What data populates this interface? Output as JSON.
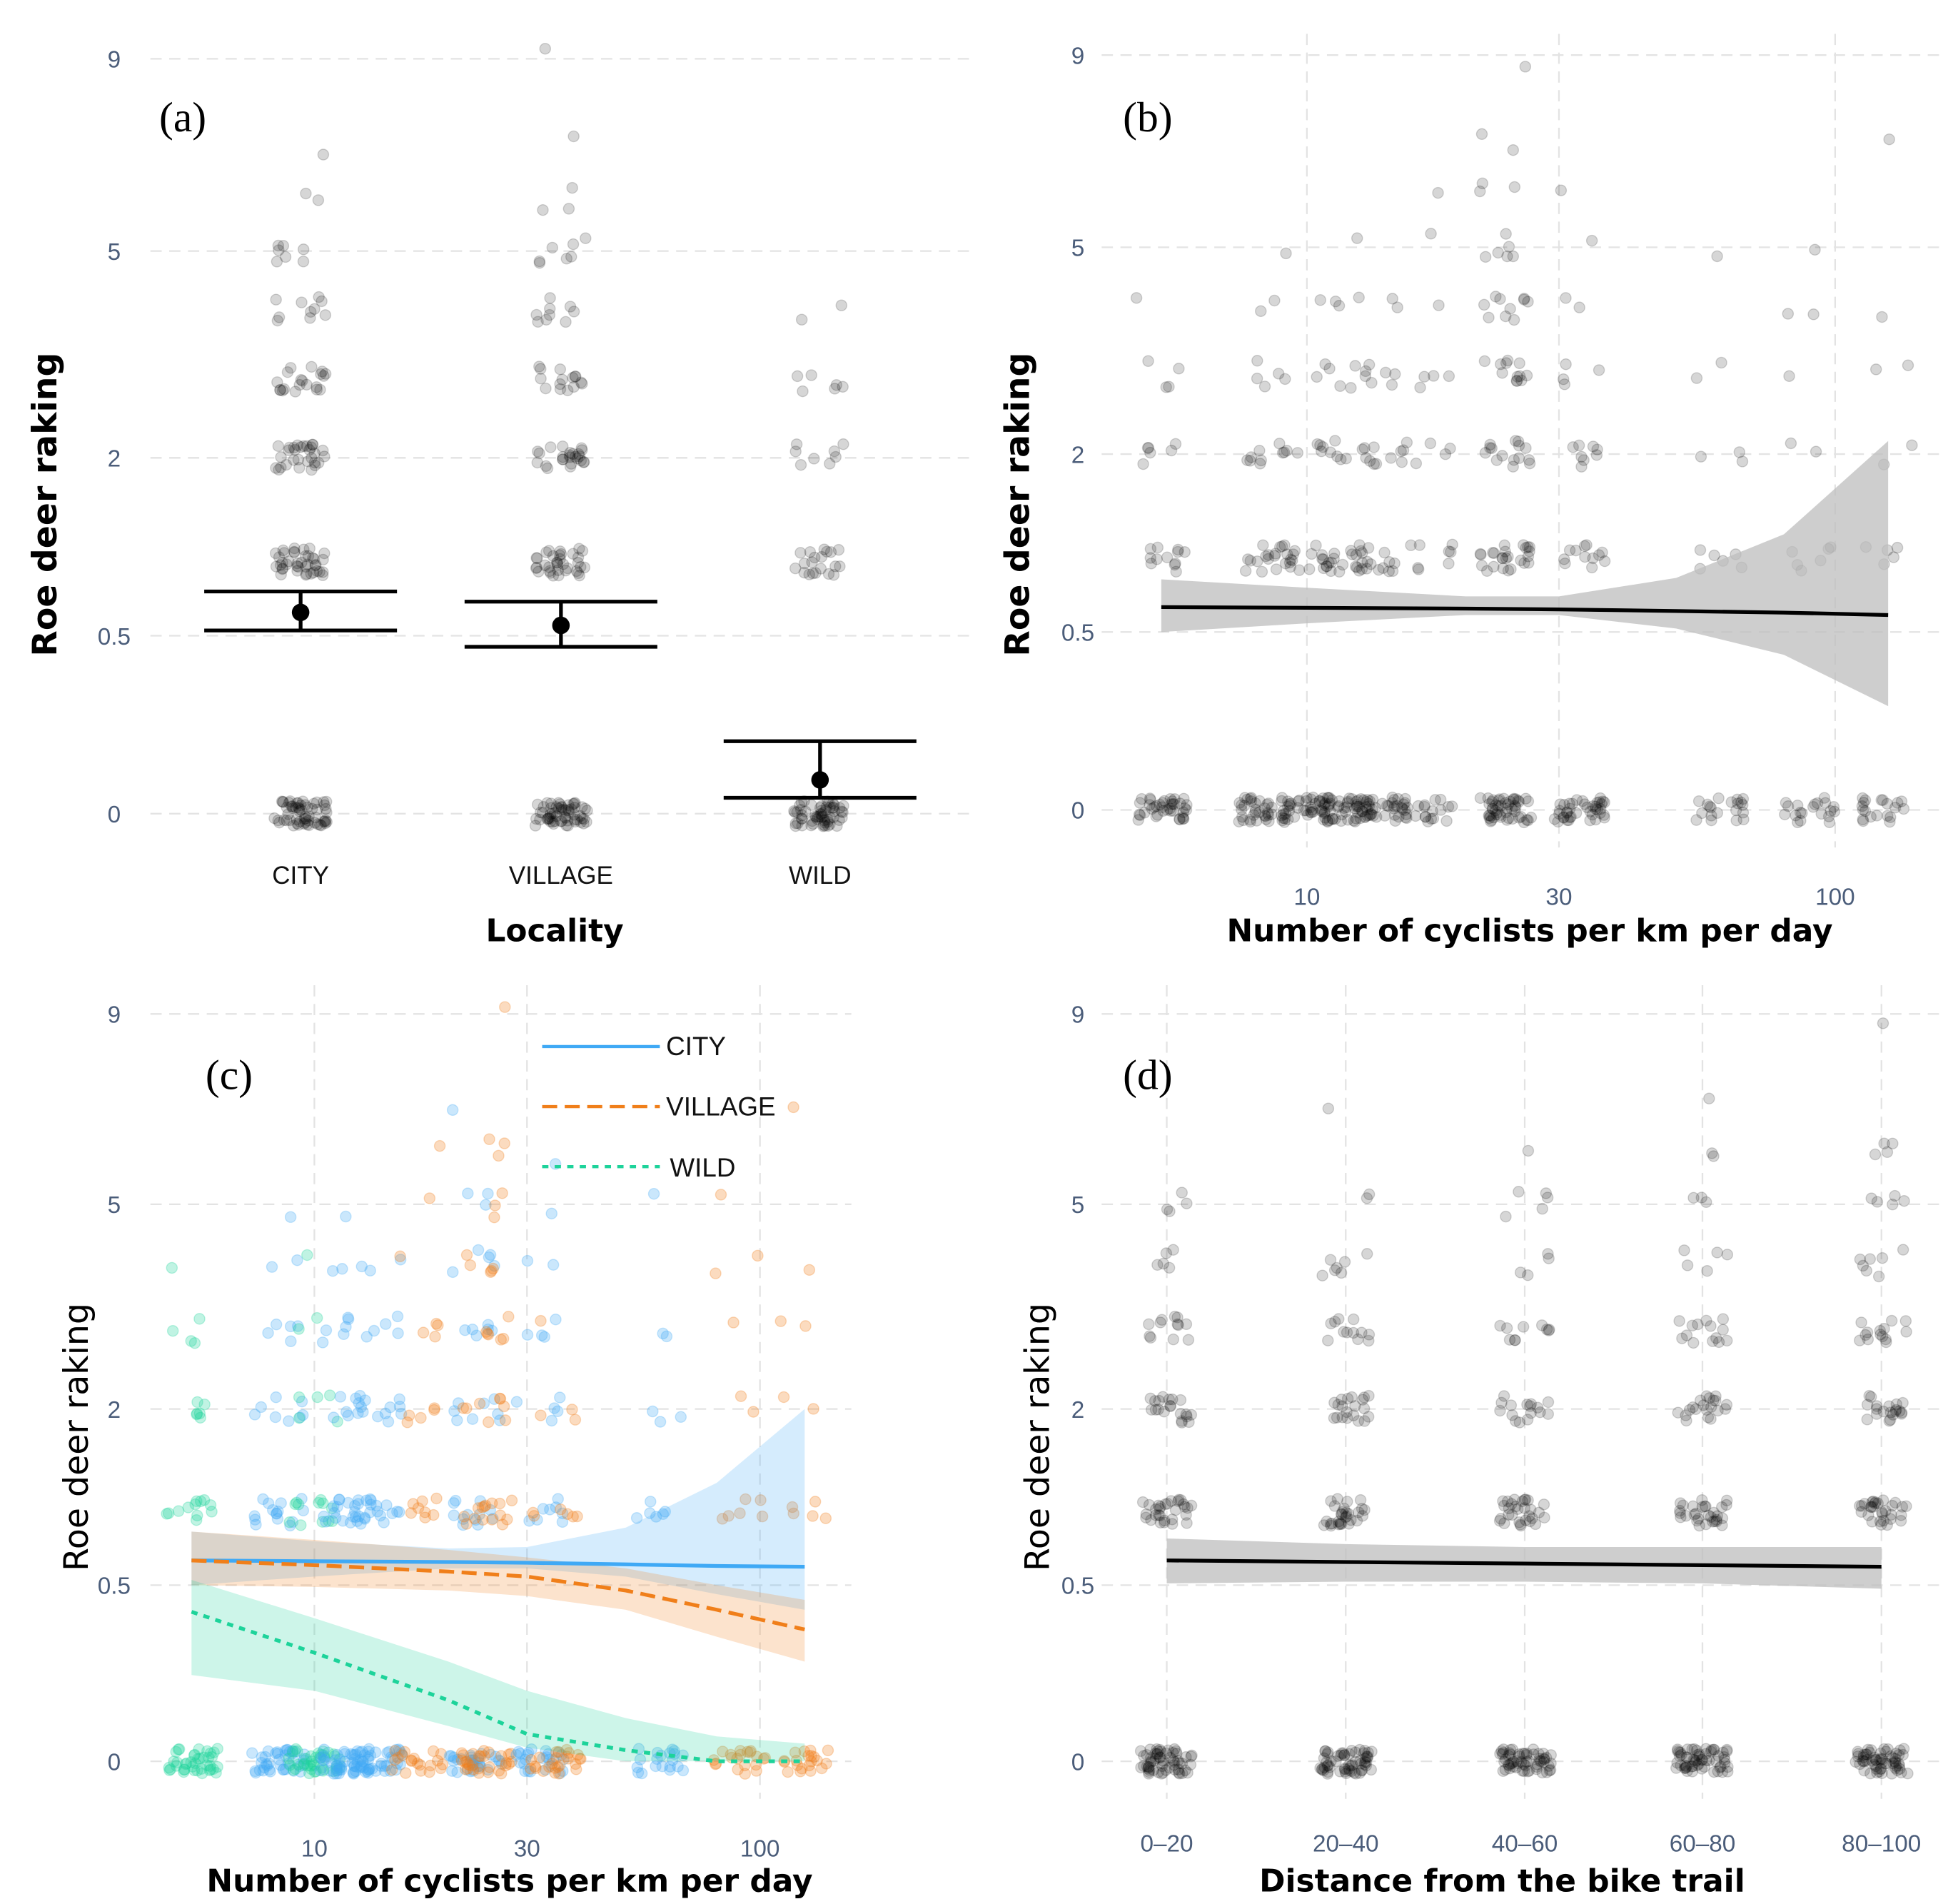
{
  "colors": {
    "city": "#3fa9f5",
    "village": "#f07f1a",
    "wild": "#1dd39a",
    "points": "#000000",
    "ribbon": "#bdbdbd"
  },
  "chart_data": [
    {
      "id": "a",
      "type": "scatter",
      "panel_label": "(a)",
      "xlabel": "Locality",
      "ylabel": "Roe deer raking",
      "y_scale": "sqrt",
      "yticks": [
        "0",
        "0.5",
        "2",
        "5",
        "9"
      ],
      "ytick_values": [
        0,
        0.5,
        2,
        5,
        9
      ],
      "categories": [
        "CITY",
        "VILLAGE",
        "WILD"
      ],
      "levels": [
        0,
        1,
        2,
        3,
        4,
        5,
        6,
        7,
        9
      ],
      "clusters": [
        {
          "x": "CITY",
          "counts": [
            60,
            40,
            30,
            20,
            10,
            7,
            2,
            1,
            0
          ]
        },
        {
          "x": "VILLAGE",
          "counts": [
            60,
            35,
            25,
            15,
            9,
            7,
            3,
            1,
            1
          ]
        },
        {
          "x": "WILD",
          "counts": [
            60,
            20,
            8,
            6,
            2,
            0,
            0,
            0,
            0
          ]
        }
      ],
      "means": [
        {
          "x": "CITY",
          "mean": 0.64,
          "lower": 0.53,
          "upper": 0.78
        },
        {
          "x": "VILLAGE",
          "mean": 0.56,
          "lower": 0.44,
          "upper": 0.71
        },
        {
          "x": "WILD",
          "mean": 0.018,
          "lower": 0.004,
          "upper": 0.083
        }
      ],
      "grid": "horizontal"
    },
    {
      "id": "b",
      "type": "scatter",
      "panel_label": "(b)",
      "xlabel": "Number of cyclists per km per day",
      "ylabel": "Roe deer raking",
      "x_scale": "log10",
      "xticks": [
        "10",
        "30",
        "100"
      ],
      "xtick_values": [
        10,
        30,
        100
      ],
      "y_scale": "sqrt",
      "yticks": [
        "0",
        "0.5",
        "2",
        "5",
        "9"
      ],
      "ytick_values": [
        0,
        0.5,
        2,
        5,
        9
      ],
      "levels": [
        0,
        1,
        2,
        3,
        4,
        5,
        6,
        7,
        9
      ],
      "clusters": [
        {
          "x": 5.3,
          "counts": [
            40,
            12,
            6,
            4,
            1,
            0,
            0,
            0,
            0
          ]
        },
        {
          "x": 8.3,
          "counts": [
            40,
            15,
            8,
            5,
            2,
            1,
            0,
            0,
            0
          ]
        },
        {
          "x": 10,
          "counts": [
            40,
            12,
            5,
            2,
            1,
            0,
            0,
            0,
            0
          ]
        },
        {
          "x": 11.8,
          "counts": [
            40,
            20,
            10,
            6,
            3,
            1,
            0,
            0,
            0
          ]
        },
        {
          "x": 13.8,
          "counts": [
            40,
            15,
            8,
            5,
            2,
            0,
            0,
            0,
            0
          ]
        },
        {
          "x": 17,
          "counts": [
            20,
            8,
            5,
            4,
            1,
            1,
            1,
            0,
            0
          ]
        },
        {
          "x": 23.7,
          "counts": [
            50,
            25,
            15,
            12,
            10,
            6,
            3,
            2,
            1
          ]
        },
        {
          "x": 33,
          "counts": [
            40,
            12,
            8,
            4,
            2,
            1,
            1,
            0,
            0
          ]
        },
        {
          "x": 60,
          "counts": [
            20,
            6,
            3,
            2,
            0,
            1,
            0,
            0,
            0
          ]
        },
        {
          "x": 90,
          "counts": [
            20,
            6,
            2,
            1,
            2,
            1,
            0,
            0,
            0
          ]
        },
        {
          "x": 126,
          "counts": [
            20,
            5,
            2,
            2,
            1,
            0,
            0,
            1,
            0
          ]
        }
      ],
      "fit": {
        "x": [
          5.3,
          10,
          20,
          30,
          50,
          80,
          126
        ],
        "y": [
          0.65,
          0.645,
          0.64,
          0.635,
          0.625,
          0.615,
          0.6
        ],
        "lower": [
          0.5,
          0.55,
          0.6,
          0.6,
          0.52,
          0.38,
          0.17
        ],
        "upper": [
          0.84,
          0.78,
          0.72,
          0.72,
          0.85,
          1.2,
          2.15
        ]
      },
      "grid": "both"
    },
    {
      "id": "c",
      "type": "scatter",
      "panel_label": "(c)",
      "xlabel": "Number of cyclists per km per day",
      "ylabel": "Roe deer raking",
      "x_scale": "log10",
      "xticks": [
        "10",
        "30",
        "100"
      ],
      "xtick_values": [
        10,
        30,
        100
      ],
      "y_scale": "sqrt",
      "yticks": [
        "0",
        "0.5",
        "2",
        "5",
        "9"
      ],
      "ytick_values": [
        0,
        0.5,
        2,
        5,
        9
      ],
      "legend": {
        "position": "top-center",
        "entries": [
          {
            "key": "city",
            "label": "CITY",
            "style": "solid"
          },
          {
            "key": "village",
            "label": "VILLAGE",
            "style": "dashed"
          },
          {
            "key": "wild",
            "label": "WILD",
            "style": "dotted"
          }
        ]
      },
      "levels": [
        0,
        1,
        2,
        3,
        4,
        5,
        6,
        7,
        9
      ],
      "clusters": [
        {
          "x": 5.3,
          "group": "wild",
          "counts": [
            40,
            12,
            6,
            4,
            1,
            0,
            0,
            0,
            0
          ]
        },
        {
          "x": 8.3,
          "group": "city",
          "counts": [
            40,
            15,
            8,
            5,
            2,
            1,
            0,
            0,
            0
          ]
        },
        {
          "x": 10,
          "group": "wild",
          "counts": [
            40,
            12,
            5,
            2,
            1,
            0,
            0,
            0,
            0
          ]
        },
        {
          "x": 11.8,
          "group": "city",
          "counts": [
            40,
            20,
            10,
            6,
            3,
            1,
            0,
            0,
            0
          ]
        },
        {
          "x": 13.8,
          "group": "city",
          "counts": [
            40,
            15,
            8,
            5,
            2,
            0,
            0,
            0,
            0
          ]
        },
        {
          "x": 17,
          "group": "village",
          "counts": [
            20,
            8,
            5,
            4,
            1,
            1,
            1,
            0,
            0
          ]
        },
        {
          "x": 23,
          "group": "city",
          "counts": [
            30,
            12,
            8,
            6,
            5,
            3,
            0,
            1,
            0
          ]
        },
        {
          "x": 24.5,
          "group": "village",
          "counts": [
            30,
            15,
            8,
            6,
            5,
            3,
            3,
            0,
            1
          ]
        },
        {
          "x": 32,
          "group": "city",
          "counts": [
            25,
            8,
            5,
            4,
            2,
            1,
            1,
            0,
            0
          ]
        },
        {
          "x": 35,
          "group": "village",
          "counts": [
            25,
            6,
            3,
            1,
            0,
            0,
            0,
            0,
            0
          ]
        },
        {
          "x": 60,
          "group": "city",
          "counts": [
            20,
            6,
            3,
            2,
            0,
            1,
            0,
            0,
            0
          ]
        },
        {
          "x": 90,
          "group": "village",
          "counts": [
            20,
            6,
            2,
            1,
            2,
            1,
            0,
            0,
            0
          ]
        },
        {
          "x": 126,
          "group": "village",
          "counts": [
            20,
            5,
            2,
            2,
            1,
            0,
            0,
            1,
            0
          ]
        }
      ],
      "fits": [
        {
          "key": "city",
          "x": [
            5.3,
            10,
            20,
            30,
            50,
            80,
            126
          ],
          "y": [
            0.65,
            0.645,
            0.64,
            0.635,
            0.625,
            0.615,
            0.61
          ],
          "lower": [
            0.5,
            0.55,
            0.6,
            0.6,
            0.55,
            0.45,
            0.37
          ],
          "upper": [
            0.85,
            0.78,
            0.73,
            0.74,
            0.88,
            1.25,
            2.0
          ]
        },
        {
          "key": "village",
          "x": [
            5.3,
            10,
            20,
            30,
            50,
            80,
            126
          ],
          "y": [
            0.65,
            0.62,
            0.58,
            0.55,
            0.47,
            0.37,
            0.28
          ],
          "lower": [
            0.5,
            0.49,
            0.47,
            0.44,
            0.37,
            0.25,
            0.16
          ],
          "upper": [
            0.85,
            0.79,
            0.72,
            0.67,
            0.6,
            0.5,
            0.42
          ]
        },
        {
          "key": "wild",
          "x": [
            5.3,
            10,
            20,
            30,
            50,
            80,
            126
          ],
          "y": [
            0.36,
            0.19,
            0.06,
            0.012,
            0.002,
            0,
            0
          ],
          "lower": [
            0.12,
            0.08,
            0.02,
            0.003,
            0,
            0,
            0
          ],
          "upper": [
            0.53,
            0.33,
            0.16,
            0.08,
            0.03,
            0.01,
            0.005
          ]
        }
      ],
      "grid": "both"
    },
    {
      "id": "d",
      "type": "scatter",
      "panel_label": "(d)",
      "xlabel": "Distance from the bike trail",
      "ylabel": "Roe deer raking",
      "categories": [
        "0–20",
        "20–40",
        "40–60",
        "60–80",
        "80–100"
      ],
      "y_scale": "sqrt",
      "yticks": [
        "0",
        "0.5",
        "2",
        "5",
        "9"
      ],
      "ytick_values": [
        0,
        0.5,
        2,
        5,
        9
      ],
      "levels": [
        0,
        1,
        2,
        3,
        4,
        5,
        6,
        7,
        9
      ],
      "clusters": [
        {
          "x": "0–20",
          "counts": [
            60,
            30,
            20,
            12,
            5,
            4,
            0,
            0,
            0
          ]
        },
        {
          "x": "20–40",
          "counts": [
            60,
            30,
            20,
            12,
            7,
            2,
            0,
            1,
            0
          ]
        },
        {
          "x": "40–60",
          "counts": [
            60,
            30,
            16,
            10,
            4,
            5,
            1,
            0,
            0
          ]
        },
        {
          "x": "60–80",
          "counts": [
            60,
            30,
            20,
            14,
            5,
            3,
            2,
            1,
            0
          ]
        },
        {
          "x": "80–100",
          "counts": [
            60,
            30,
            20,
            14,
            7,
            5,
            4,
            0,
            1
          ]
        }
      ],
      "fit": {
        "x": [
          "0–20",
          "20–40",
          "40–60",
          "60–80",
          "80–100"
        ],
        "y": [
          0.65,
          0.64,
          0.63,
          0.62,
          0.61
        ],
        "lower": [
          0.51,
          0.52,
          0.52,
          0.51,
          0.48
        ],
        "upper": [
          0.8,
          0.76,
          0.74,
          0.74,
          0.74
        ]
      },
      "grid": "both"
    }
  ]
}
